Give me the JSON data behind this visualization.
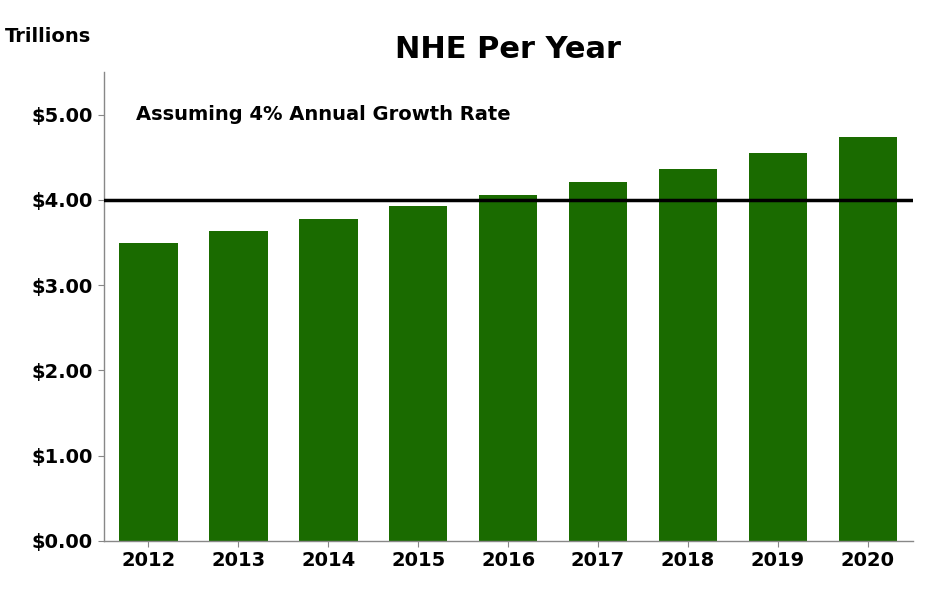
{
  "title": "NHE Per Year",
  "ylabel": "Trillions",
  "annotation": "Assuming 4% Annual Growth Rate",
  "bar_color": "#1a6b00",
  "years": [
    2012,
    2013,
    2014,
    2015,
    2016,
    2017,
    2018,
    2019,
    2020
  ],
  "values": [
    3.5,
    3.64,
    3.78,
    3.93,
    4.06,
    4.21,
    4.36,
    4.55,
    4.74
  ],
  "hline_y": 4.0,
  "hline_color": "#000000",
  "ylim": [
    0,
    5.5
  ],
  "yticks": [
    0.0,
    1.0,
    2.0,
    3.0,
    4.0,
    5.0
  ],
  "background_color": "#ffffff",
  "title_fontsize": 22,
  "label_fontsize": 14,
  "tick_fontsize": 14,
  "annotation_fontsize": 14
}
